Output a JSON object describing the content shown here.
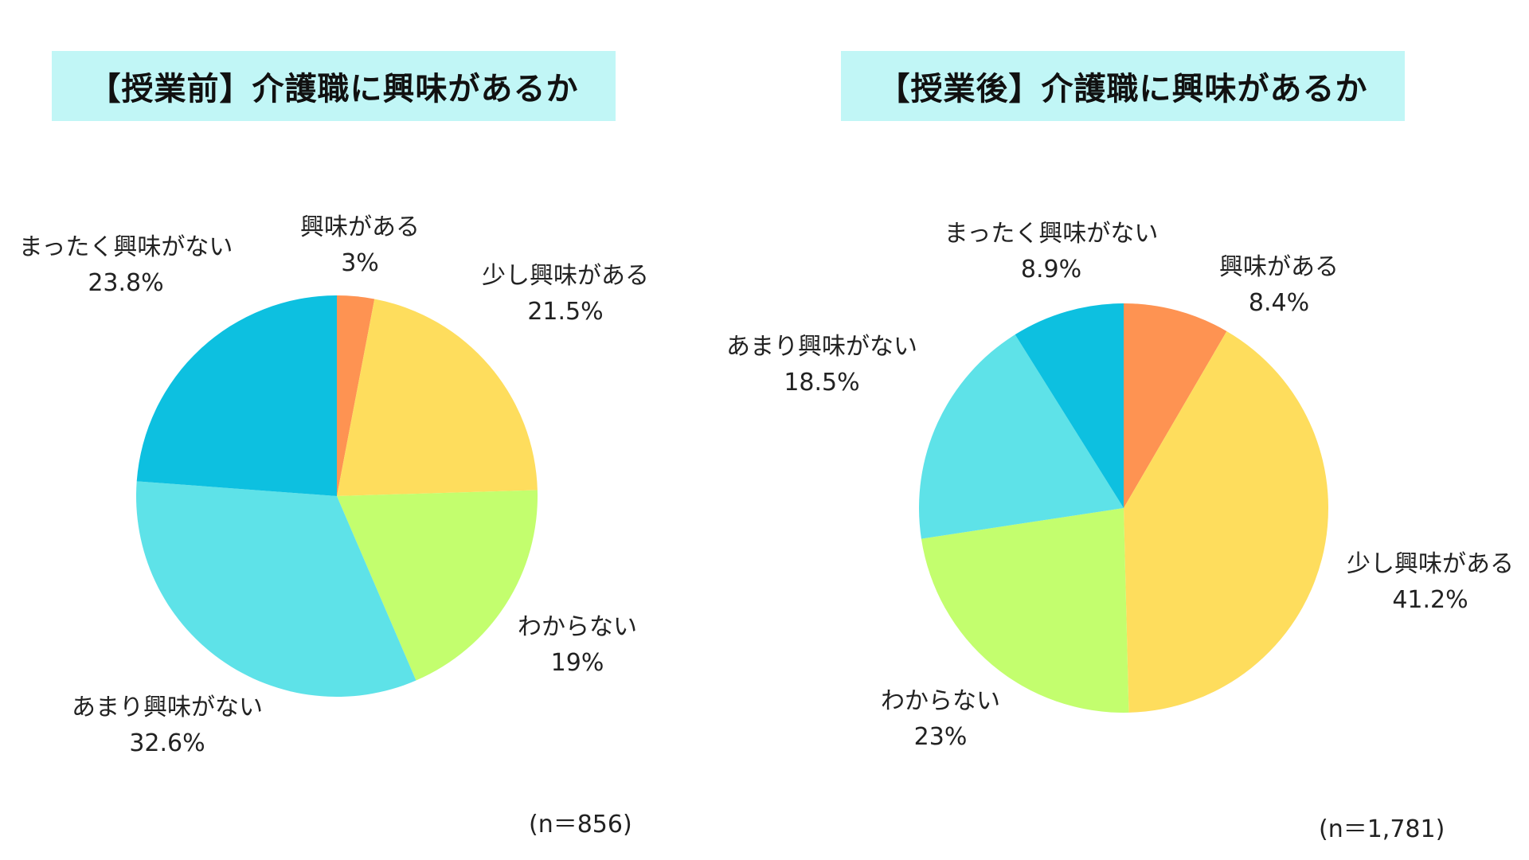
{
  "chart_data": [
    {
      "type": "pie",
      "title": "【授業前】介護職に興味があるか",
      "sample_size": "(n＝856)",
      "slices": [
        {
          "label": "興味がある",
          "value": 3,
          "value_label": "3%",
          "color": "#fe9352"
        },
        {
          "label": "少し興味がある",
          "value": 21.5,
          "value_label": "21.5%",
          "color": "#fedd5d"
        },
        {
          "label": "わからない",
          "value": 19,
          "value_label": "19%",
          "color": "#c3fe6e"
        },
        {
          "label": "あまり興味がない",
          "value": 32.6,
          "value_label": "32.6%",
          "color": "#5ee2e8"
        },
        {
          "label": "まったく興味がない",
          "value": 23.8,
          "value_label": "23.8%",
          "color": "#0dc0e0"
        }
      ]
    },
    {
      "type": "pie",
      "title": "【授業後】介護職に興味があるか",
      "sample_size": "(n＝1,781)",
      "slices": [
        {
          "label": "興味がある",
          "value": 8.4,
          "value_label": "8.4%",
          "color": "#fe9352"
        },
        {
          "label": "少し興味がある",
          "value": 41.2,
          "value_label": "41.2%",
          "color": "#fedd5d"
        },
        {
          "label": "わからない",
          "value": 23,
          "value_label": "23%",
          "color": "#c3fe6e"
        },
        {
          "label": "あまり興味がない",
          "value": 18.5,
          "value_label": "18.5%",
          "color": "#5ee2e8"
        },
        {
          "label": "まったく興味がない",
          "value": 8.9,
          "value_label": "8.9%",
          "color": "#0dc0e0"
        }
      ]
    }
  ]
}
